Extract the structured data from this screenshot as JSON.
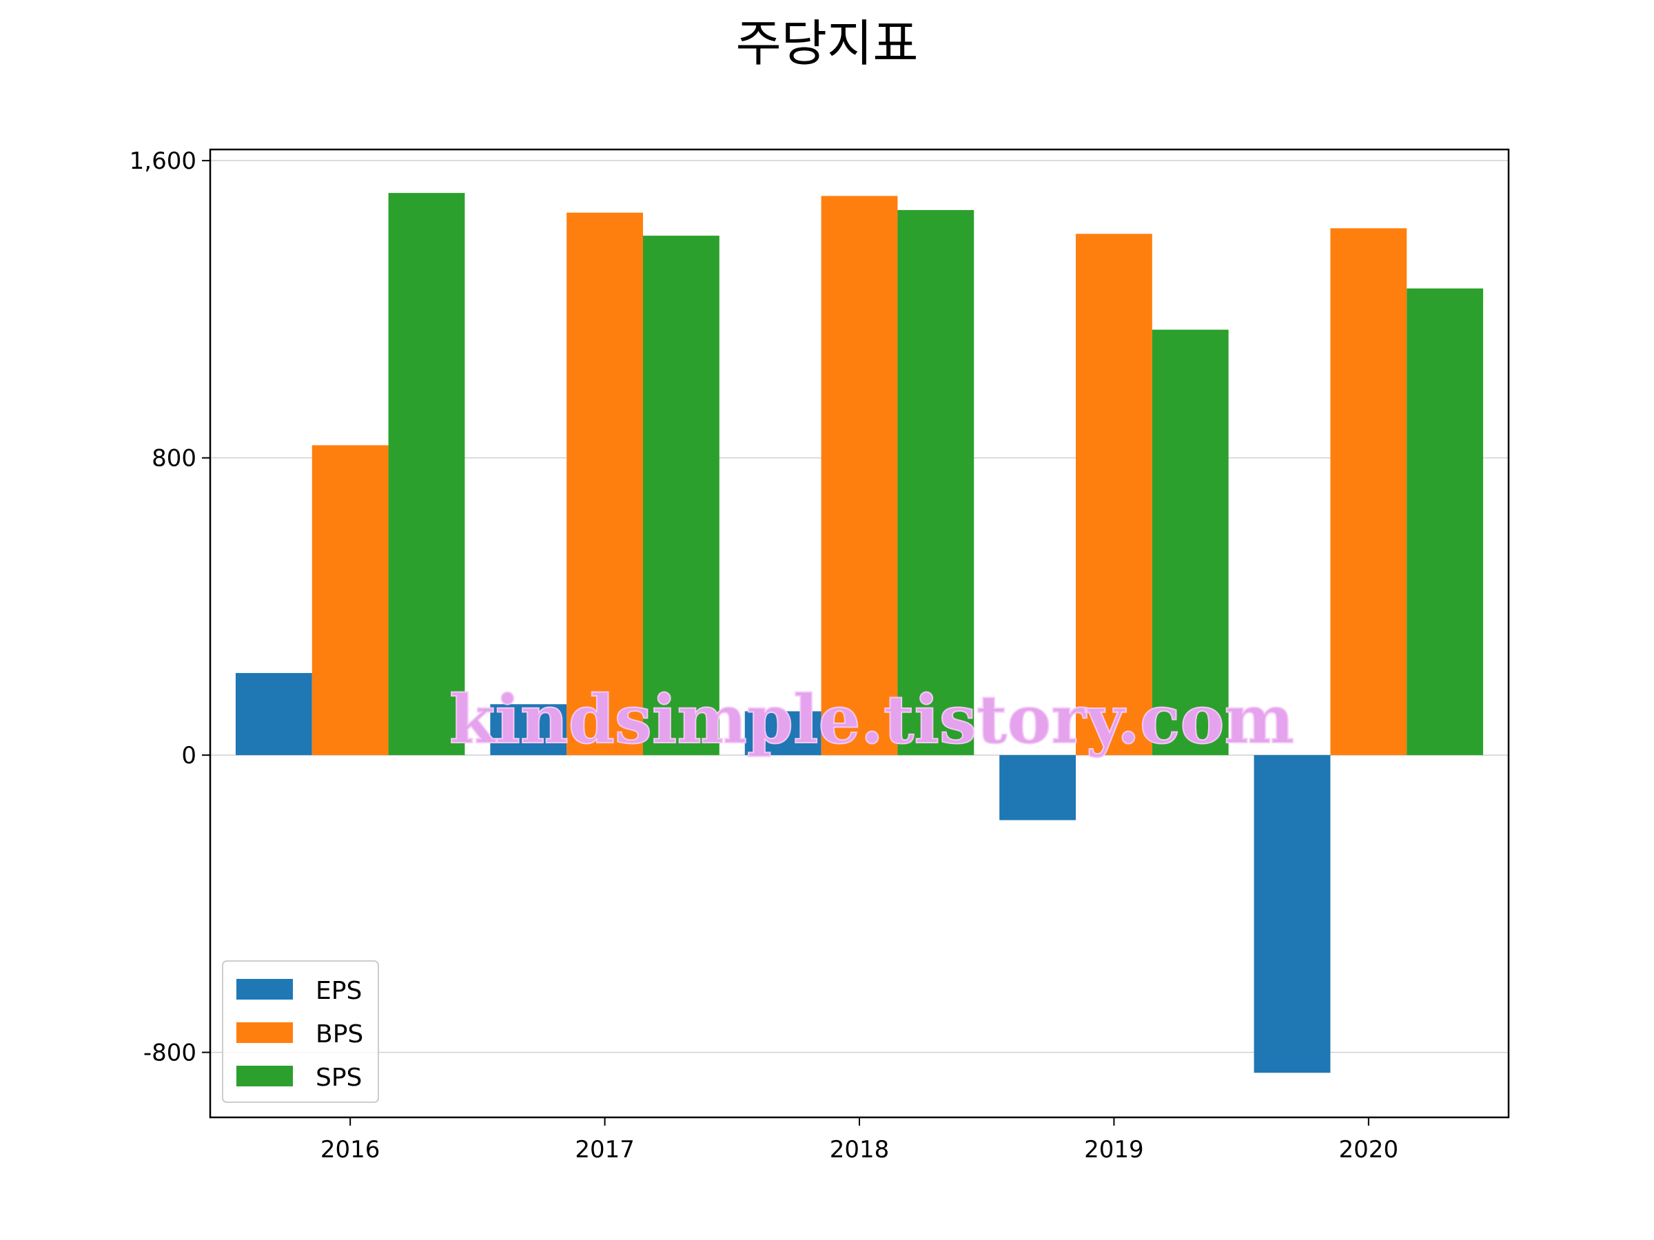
{
  "chart_data": {
    "type": "bar",
    "title": "주당지표",
    "categories": [
      "2016",
      "2017",
      "2018",
      "2019",
      "2020"
    ],
    "series": [
      {
        "name": "EPS",
        "color": "#1f77b4",
        "values": [
          221,
          137,
          118,
          -175,
          -855
        ]
      },
      {
        "name": "BPS",
        "color": "#ff7f0e",
        "values": [
          834,
          1460,
          1505,
          1403,
          1418
        ]
      },
      {
        "name": "SPS",
        "color": "#2ca02c",
        "values": [
          1513,
          1398,
          1467,
          1145,
          1256
        ]
      }
    ],
    "ylim": [
      -975,
      1630
    ],
    "yticks": [
      {
        "value": -800,
        "label": "-800"
      },
      {
        "value": 0,
        "label": "0"
      },
      {
        "value": 800,
        "label": "800"
      },
      {
        "value": 1600,
        "label": "1,600"
      }
    ],
    "grid": "y",
    "legend_position": "lower-left"
  },
  "watermark": "kindsimple.tistory.com"
}
